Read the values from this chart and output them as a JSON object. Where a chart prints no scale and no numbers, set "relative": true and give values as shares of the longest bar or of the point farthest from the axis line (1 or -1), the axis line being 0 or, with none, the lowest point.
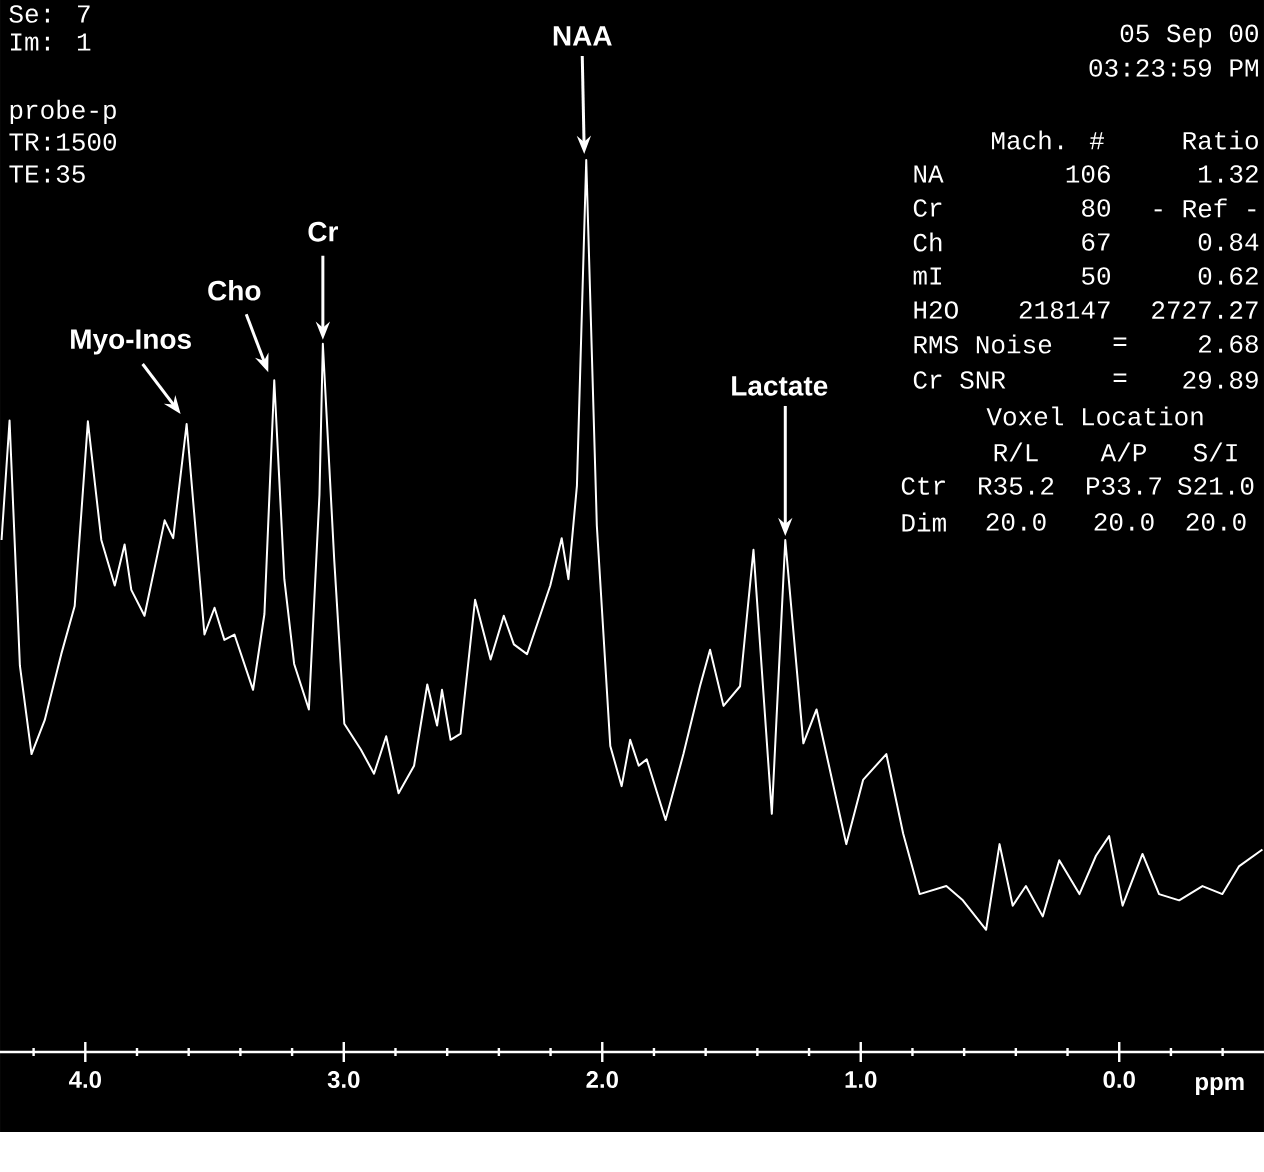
{
  "chart_data": {
    "type": "line",
    "relative": true,
    "xlabel": "ppm",
    "xlim": [
      4.33,
      -0.56
    ],
    "xticks": [
      {
        "value": 4,
        "label": "4.0"
      },
      {
        "value": 3,
        "label": "3.0"
      },
      {
        "value": 2,
        "label": "2.0"
      },
      {
        "value": 1,
        "label": "1.0"
      },
      {
        "value": 0,
        "label": "0.0"
      },
      {
        "value": 4.2,
        "label": null
      },
      {
        "value": 3.8,
        "label": null
      },
      {
        "value": 3.6,
        "label": null
      },
      {
        "value": 3.4,
        "label": null
      },
      {
        "value": 3.2,
        "label": null
      },
      {
        "value": 2.8,
        "label": null
      },
      {
        "value": 2.6,
        "label": null
      },
      {
        "value": 2.4,
        "label": null
      },
      {
        "value": 2.2,
        "label": null
      },
      {
        "value": 1.8,
        "label": null
      },
      {
        "value": 1.6,
        "label": null
      },
      {
        "value": 1.4,
        "label": null
      },
      {
        "value": 1.2,
        "label": null
      },
      {
        "value": 0.8,
        "label": null
      },
      {
        "value": 0.6,
        "label": null
      },
      {
        "value": 0.4,
        "label": null
      },
      {
        "value": 0.2,
        "label": null
      },
      {
        "value": -0.2,
        "label": null
      },
      {
        "value": -0.4,
        "label": null
      }
    ],
    "series": [
      {
        "color": "#ffffff",
        "x": [
          4.324,
          4.293,
          4.253,
          4.208,
          4.157,
          4.093,
          4.041,
          3.99,
          3.938,
          3.886,
          3.848,
          3.822,
          3.771,
          3.693,
          3.66,
          3.608,
          3.539,
          3.5,
          3.462,
          3.423,
          3.351,
          3.307,
          3.269,
          3.23,
          3.192,
          3.135,
          3.094,
          3.081,
          3.037,
          2.998,
          2.934,
          2.883,
          2.836,
          2.788,
          2.728,
          2.677,
          2.639,
          2.62,
          2.587,
          2.548,
          2.492,
          2.432,
          2.381,
          2.342,
          2.291,
          2.201,
          2.157,
          2.131,
          2.098,
          2.062,
          2.021,
          1.969,
          1.925,
          1.892,
          1.859,
          1.828,
          1.755,
          1.686,
          1.622,
          1.583,
          1.531,
          1.467,
          1.415,
          1.344,
          1.292,
          1.222,
          1.171,
          1.056,
          0.991,
          0.901,
          0.836,
          0.772,
          0.669,
          0.605,
          0.515,
          0.463,
          0.412,
          0.361,
          0.296,
          0.232,
          0.154,
          0.09,
          0.039,
          -0.013,
          -0.09,
          -0.154,
          -0.232,
          -0.322,
          -0.399,
          -0.463,
          -0.554
        ],
        "values": [
          0.574,
          0.708,
          0.433,
          0.334,
          0.372,
          0.446,
          0.5,
          0.707,
          0.574,
          0.523,
          0.569,
          0.518,
          0.489,
          0.596,
          0.576,
          0.704,
          0.468,
          0.498,
          0.462,
          0.468,
          0.406,
          0.491,
          0.753,
          0.53,
          0.435,
          0.384,
          0.625,
          0.794,
          0.552,
          0.368,
          0.339,
          0.312,
          0.354,
          0.29,
          0.321,
          0.412,
          0.366,
          0.406,
          0.35,
          0.357,
          0.507,
          0.44,
          0.489,
          0.457,
          0.446,
          0.523,
          0.576,
          0.53,
          0.635,
          1,
          0.59,
          0.343,
          0.298,
          0.35,
          0.321,
          0.328,
          0.26,
          0.334,
          0.41,
          0.451,
          0.388,
          0.41,
          0.563,
          0.267,
          0.574,
          0.346,
          0.384,
          0.233,
          0.305,
          0.334,
          0.245,
          0.177,
          0.186,
          0.17,
          0.137,
          0.233,
          0.164,
          0.186,
          0.152,
          0.215,
          0.177,
          0.22,
          0.242,
          0.164,
          0.222,
          0.177,
          0.17,
          0.186,
          0.177,
          0.208,
          0.227
        ]
      }
    ],
    "annotations": [
      {
        "text": "Myo-Inos",
        "x": 3.608,
        "y": 0.704
      },
      {
        "text": "Cho",
        "x": 3.269,
        "y": 0.753
      },
      {
        "text": "Cr",
        "x": 3.081,
        "y": 0.794
      },
      {
        "text": "NAA",
        "x": 2.062,
        "y": 1
      },
      {
        "text": "Lactate",
        "x": 1.292,
        "y": 0.574
      },
      "Se: 7",
      "Im: 1",
      "probe-p",
      "TR:1500",
      "TE:35",
      "05 Sep 00",
      "03:23:59 PM",
      "Mach. #",
      "Ratio",
      "NA",
      "106",
      "1.32",
      "Cr",
      "80",
      "- Ref -",
      "Ch",
      "67",
      "0.84",
      "mI",
      "50",
      "0.62",
      "H2O",
      "218147",
      "2727.27",
      "RMS Noise",
      "=",
      "2.68",
      "Cr SNR",
      "=",
      "29.89",
      "Voxel Location",
      "R/L",
      "A/P",
      "S/I",
      "Ctr",
      "R35.2",
      "P33.7",
      "S21.0",
      "Dim",
      "20.0",
      "20.0",
      "20.0"
    ]
  }
}
